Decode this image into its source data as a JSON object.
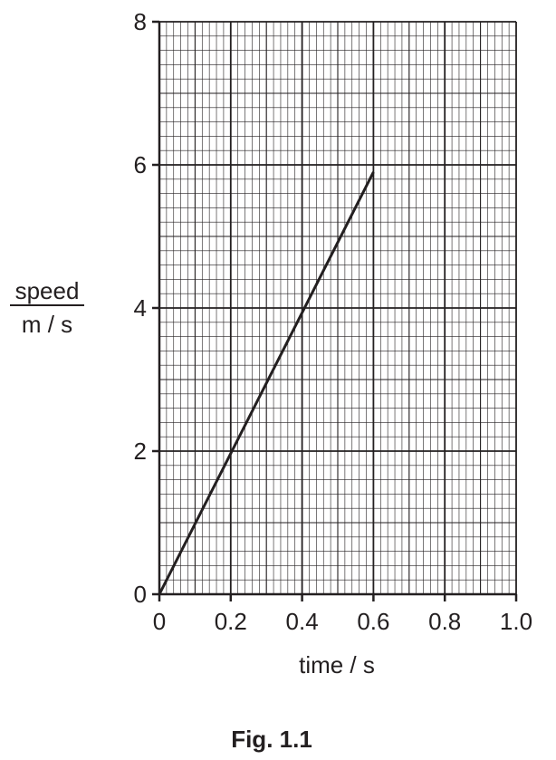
{
  "chart_data": {
    "type": "line",
    "title": "",
    "xlabel": "time / s",
    "ylabel_top": "speed",
    "ylabel_bottom": "m / s",
    "xlim": [
      0,
      1.0
    ],
    "ylim": [
      0,
      8
    ],
    "x_ticks": [
      0,
      0.2,
      0.4,
      0.6,
      0.8,
      1.0
    ],
    "x_tick_labels": [
      "0",
      "0.2",
      "0.4",
      "0.6",
      "0.8",
      "1.0"
    ],
    "y_ticks": [
      0,
      2,
      4,
      6,
      8
    ],
    "y_tick_labels": [
      "0",
      "2",
      "4",
      "6",
      "8"
    ],
    "grid": {
      "major_x_step": 0.2,
      "major_y_step": 2,
      "minor_x_step": 0.02,
      "minor_y_step": 0.2
    },
    "series": [
      {
        "x": [
          0,
          0.6
        ],
        "y": [
          0,
          5.9
        ]
      }
    ],
    "colors": {
      "ink": "#231f20",
      "grid_major": "#231f20",
      "grid_minor": "#231f20"
    }
  },
  "caption": "Fig. 1.1"
}
